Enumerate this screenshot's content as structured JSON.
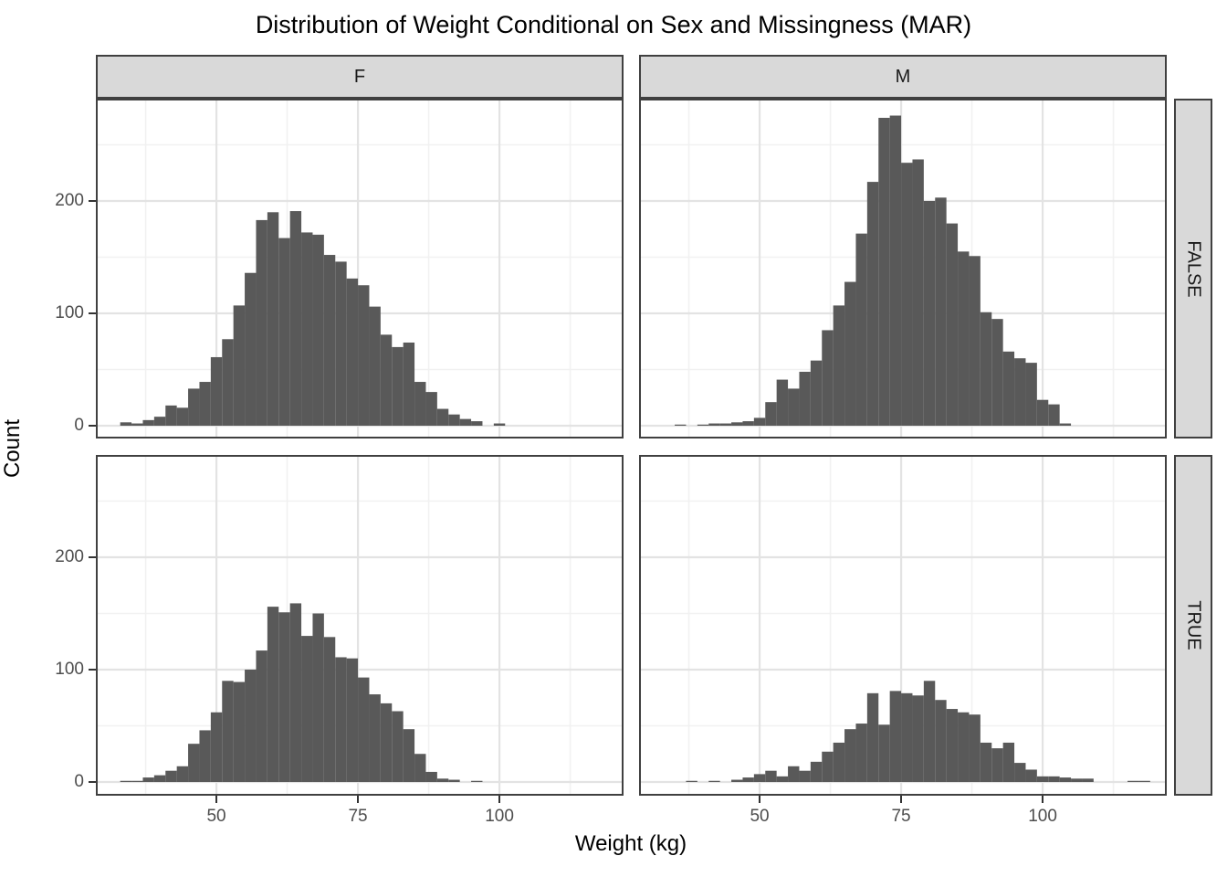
{
  "title": "Distribution of Weight Conditional on Sex and Missingness (MAR)",
  "axes": {
    "x": {
      "title": "Weight (kg)",
      "tick_labels": [
        "50",
        "75",
        "100"
      ],
      "tick_values": [
        50,
        75,
        100
      ],
      "minor_values": [
        37.5,
        62.5,
        87.5,
        112.5
      ],
      "range": [
        28.7,
        121.9
      ]
    },
    "y": {
      "title": "Count",
      "tick_labels": [
        "0",
        "100",
        "200"
      ],
      "tick_values": [
        0,
        100,
        200
      ],
      "minor_values": [
        50,
        150,
        250
      ],
      "range": [
        0,
        291
      ]
    }
  },
  "facets": {
    "column_labels": [
      "F",
      "M"
    ],
    "row_labels": [
      "FALSE",
      "TRUE"
    ]
  },
  "colors": {
    "bar": "#595959",
    "strip_bg": "#d9d9d9",
    "border": "#404040",
    "grid_major": "#e3e3e3",
    "grid_minor": "#f1f1f1",
    "tick_label": "#4d4d4d",
    "panel_bg": "#ffffff"
  },
  "chart_data": {
    "type": "bar",
    "subtype": "faceted-histogram",
    "title": "Distribution of Weight Conditional on Sex and Missingness (MAR)",
    "xlabel": "Weight (kg)",
    "ylabel": "Count",
    "xlim": [
      28.7,
      121.9
    ],
    "ylim": [
      0,
      291
    ],
    "grid": "on",
    "legend": "none",
    "panels": [
      {
        "facet_col": "F",
        "facet_row": "FALSE",
        "bin_start": 33,
        "bin_width": 2,
        "counts": [
          3,
          2,
          5,
          8,
          18,
          16,
          33,
          39,
          61,
          77,
          107,
          136,
          183,
          190,
          167,
          191,
          172,
          170,
          152,
          146,
          131,
          125,
          106,
          81,
          70,
          74,
          39,
          30,
          15,
          10,
          6,
          4,
          0,
          2
        ]
      },
      {
        "facet_col": "M",
        "facet_row": "FALSE",
        "bin_start": 35,
        "bin_width": 2,
        "counts": [
          1,
          0,
          1,
          2,
          2,
          3,
          4,
          7,
          21,
          41,
          33,
          48,
          58,
          85,
          107,
          128,
          171,
          217,
          274,
          276,
          234,
          237,
          200,
          203,
          180,
          155,
          151,
          101,
          95,
          66,
          60,
          56,
          23,
          19,
          2
        ]
      },
      {
        "facet_col": "F",
        "facet_row": "TRUE",
        "bin_start": 33,
        "bin_width": 2,
        "counts": [
          1,
          1,
          4,
          6,
          10,
          14,
          34,
          46,
          62,
          90,
          89,
          100,
          117,
          156,
          151,
          159,
          130,
          150,
          129,
          111,
          110,
          93,
          78,
          70,
          63,
          47,
          25,
          9,
          3,
          2,
          0,
          1
        ]
      },
      {
        "facet_col": "M",
        "facet_row": "TRUE",
        "bin_start": 37,
        "bin_width": 2,
        "counts": [
          1,
          0,
          1,
          0,
          2,
          4,
          7,
          10,
          5,
          14,
          10,
          18,
          27,
          35,
          47,
          52,
          79,
          51,
          81,
          79,
          77,
          90,
          73,
          65,
          62,
          60,
          35,
          30,
          35,
          17,
          11,
          5,
          5,
          4,
          3,
          3,
          0,
          0,
          0,
          1,
          1
        ]
      }
    ]
  }
}
